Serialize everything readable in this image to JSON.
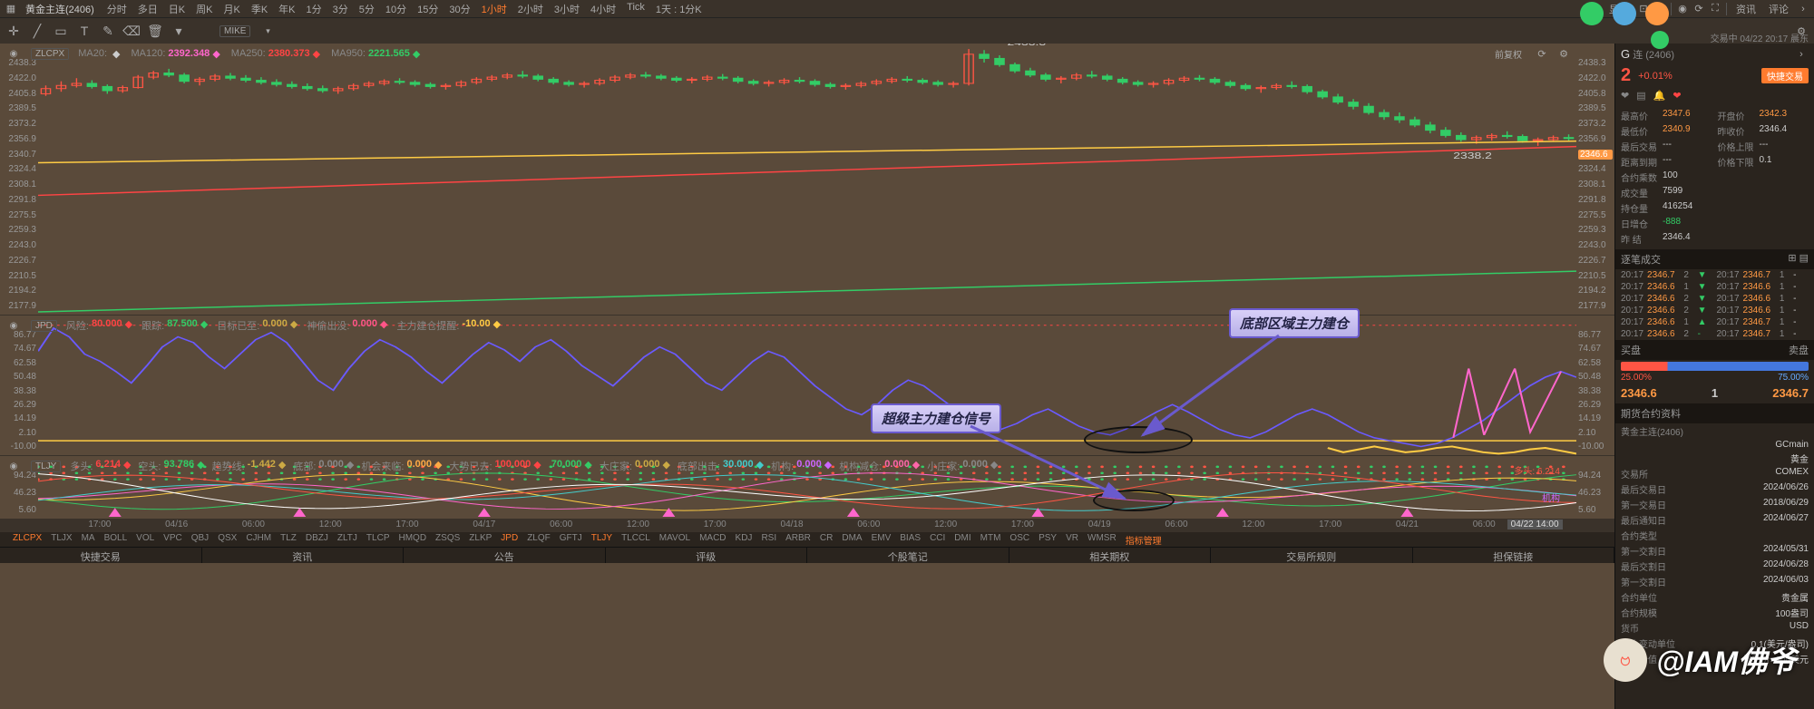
{
  "instrument": {
    "name": "黄金主连(2406)",
    "code_label": "(2406)"
  },
  "toolbar": {
    "timeframes": [
      "分时",
      "多日",
      "日K",
      "周K",
      "月K",
      "季K",
      "年K",
      "1分",
      "3分",
      "5分",
      "10分",
      "15分",
      "30分",
      "1小时",
      "2小时",
      "3小时",
      "4小时",
      "Tick",
      "1天 : 1分K"
    ],
    "active_tf": "1小时",
    "display_label": "显示",
    "right_tabs": [
      "资讯",
      "评论"
    ],
    "fq_label": "前复权"
  },
  "toolbar2": {
    "symbol1": "MIKE",
    "symbol2": "ZLCPX",
    "ma": [
      {
        "label": "MA20:",
        "val": "",
        "color": "#cccccc"
      },
      {
        "label": "MA120:",
        "val": "2392.348",
        "color": "#ff66cc"
      },
      {
        "label": "MA250:",
        "val": "2380.373",
        "color": "#ff4444"
      },
      {
        "label": "MA950:",
        "val": "2221.565",
        "color": "#33cc66"
      }
    ]
  },
  "price_pane": {
    "yticks": [
      "2438.3",
      "2422.0",
      "2405.8",
      "2389.5",
      "2373.2",
      "2356.9",
      "2340.7",
      "2324.4",
      "2308.1",
      "2291.8",
      "2275.5",
      "2259.3",
      "2243.0",
      "2226.7",
      "2210.5",
      "2194.2",
      "2177.9"
    ],
    "current_y_label": "2346.6",
    "hi_label": "2433.3",
    "lo_label": "2338.2",
    "candle_color_up": "#ff5544",
    "candle_color_dn": "#33cc66",
    "ma_lines": [
      {
        "color": "#ffcc44",
        "y0": 0.44,
        "y1": 0.36
      },
      {
        "color": "#ff4444",
        "y0": 0.56,
        "y1": 0.38
      },
      {
        "color": "#33cc66",
        "y0": 0.99,
        "y1": 0.84
      }
    ],
    "candles_ohlc": [
      [
        2390,
        2398,
        2388,
        2395
      ],
      [
        2395,
        2402,
        2392,
        2398
      ],
      [
        2398,
        2405,
        2396,
        2400
      ],
      [
        2400,
        2403,
        2395,
        2397
      ],
      [
        2397,
        2399,
        2390,
        2393
      ],
      [
        2393,
        2398,
        2391,
        2396
      ],
      [
        2396,
        2408,
        2395,
        2406
      ],
      [
        2406,
        2412,
        2404,
        2410
      ],
      [
        2410,
        2414,
        2406,
        2408
      ],
      [
        2408,
        2410,
        2400,
        2402
      ],
      [
        2402,
        2406,
        2398,
        2404
      ],
      [
        2404,
        2409,
        2402,
        2407
      ],
      [
        2407,
        2410,
        2403,
        2405
      ],
      [
        2405,
        2408,
        2401,
        2403
      ],
      [
        2403,
        2406,
        2399,
        2401
      ],
      [
        2401,
        2404,
        2397,
        2399
      ],
      [
        2399,
        2402,
        2395,
        2397
      ],
      [
        2397,
        2400,
        2393,
        2395
      ],
      [
        2395,
        2398,
        2391,
        2393
      ],
      [
        2393,
        2397,
        2390,
        2395
      ],
      [
        2395,
        2400,
        2393,
        2398
      ],
      [
        2398,
        2402,
        2396,
        2400
      ],
      [
        2400,
        2404,
        2398,
        2402
      ],
      [
        2402,
        2405,
        2399,
        2401
      ],
      [
        2401,
        2403,
        2397,
        2399
      ],
      [
        2399,
        2401,
        2395,
        2397
      ],
      [
        2397,
        2400,
        2394,
        2398
      ],
      [
        2398,
        2403,
        2396,
        2401
      ],
      [
        2401,
        2406,
        2399,
        2404
      ],
      [
        2404,
        2408,
        2402,
        2406
      ],
      [
        2406,
        2410,
        2404,
        2408
      ],
      [
        2408,
        2412,
        2405,
        2407
      ],
      [
        2407,
        2409,
        2402,
        2404
      ],
      [
        2404,
        2406,
        2399,
        2401
      ],
      [
        2401,
        2403,
        2397,
        2399
      ],
      [
        2399,
        2402,
        2396,
        2400
      ],
      [
        2400,
        2405,
        2398,
        2403
      ],
      [
        2403,
        2408,
        2401,
        2406
      ],
      [
        2406,
        2410,
        2404,
        2408
      ],
      [
        2408,
        2411,
        2405,
        2407
      ],
      [
        2407,
        2409,
        2403,
        2405
      ],
      [
        2405,
        2407,
        2401,
        2403
      ],
      [
        2403,
        2406,
        2400,
        2404
      ],
      [
        2404,
        2408,
        2402,
        2406
      ],
      [
        2406,
        2409,
        2403,
        2405
      ],
      [
        2405,
        2407,
        2400,
        2402
      ],
      [
        2402,
        2404,
        2398,
        2400
      ],
      [
        2400,
        2403,
        2397,
        2401
      ],
      [
        2401,
        2405,
        2399,
        2403
      ],
      [
        2403,
        2406,
        2400,
        2402
      ],
      [
        2402,
        2404,
        2397,
        2399
      ],
      [
        2399,
        2401,
        2395,
        2397
      ],
      [
        2397,
        2400,
        2394,
        2398
      ],
      [
        2398,
        2402,
        2396,
        2400
      ],
      [
        2400,
        2404,
        2398,
        2402
      ],
      [
        2402,
        2406,
        2400,
        2404
      ],
      [
        2404,
        2407,
        2401,
        2403
      ],
      [
        2403,
        2405,
        2399,
        2401
      ],
      [
        2401,
        2403,
        2397,
        2399
      ],
      [
        2399,
        2402,
        2396,
        2400
      ],
      [
        2400,
        2433,
        2398,
        2428
      ],
      [
        2428,
        2432,
        2420,
        2424
      ],
      [
        2424,
        2427,
        2416,
        2418
      ],
      [
        2418,
        2420,
        2410,
        2412
      ],
      [
        2412,
        2415,
        2406,
        2408
      ],
      [
        2408,
        2410,
        2402,
        2404
      ],
      [
        2404,
        2407,
        2400,
        2405
      ],
      [
        2405,
        2410,
        2403,
        2408
      ],
      [
        2408,
        2412,
        2405,
        2407
      ],
      [
        2407,
        2409,
        2402,
        2404
      ],
      [
        2404,
        2406,
        2399,
        2401
      ],
      [
        2401,
        2403,
        2397,
        2399
      ],
      [
        2399,
        2402,
        2396,
        2400
      ],
      [
        2400,
        2405,
        2398,
        2403
      ],
      [
        2403,
        2407,
        2401,
        2405
      ],
      [
        2405,
        2408,
        2402,
        2404
      ],
      [
        2404,
        2406,
        2399,
        2401
      ],
      [
        2401,
        2403,
        2396,
        2398
      ],
      [
        2398,
        2400,
        2393,
        2395
      ],
      [
        2395,
        2398,
        2391,
        2396
      ],
      [
        2396,
        2400,
        2394,
        2398
      ],
      [
        2398,
        2402,
        2395,
        2397
      ],
      [
        2397,
        2399,
        2390,
        2392
      ],
      [
        2392,
        2394,
        2385,
        2387
      ],
      [
        2387,
        2390,
        2380,
        2382
      ],
      [
        2382,
        2385,
        2375,
        2378
      ],
      [
        2378,
        2381,
        2370,
        2372
      ],
      [
        2372,
        2375,
        2365,
        2368
      ],
      [
        2368,
        2372,
        2362,
        2365
      ],
      [
        2365,
        2368,
        2358,
        2360
      ],
      [
        2360,
        2363,
        2352,
        2355
      ],
      [
        2355,
        2358,
        2348,
        2350
      ],
      [
        2350,
        2353,
        2344,
        2346
      ],
      [
        2346,
        2350,
        2342,
        2348
      ],
      [
        2348,
        2352,
        2345,
        2350
      ],
      [
        2350,
        2354,
        2347,
        2349
      ],
      [
        2349,
        2351,
        2343,
        2345
      ],
      [
        2345,
        2348,
        2340,
        2346
      ],
      [
        2346,
        2350,
        2344,
        2348
      ],
      [
        2348,
        2351,
        2345,
        2347
      ]
    ],
    "y_domain": [
      2177.9,
      2438.3
    ]
  },
  "time_axis": {
    "ticks": [
      {
        "pos": 4,
        "label": "17:00"
      },
      {
        "pos": 9,
        "label": "04/16"
      },
      {
        "pos": 14,
        "label": "06:00"
      },
      {
        "pos": 19,
        "label": "12:00"
      },
      {
        "pos": 24,
        "label": "17:00"
      },
      {
        "pos": 29,
        "label": "04/17"
      },
      {
        "pos": 34,
        "label": "06:00"
      },
      {
        "pos": 39,
        "label": "12:00"
      },
      {
        "pos": 44,
        "label": "17:00"
      },
      {
        "pos": 49,
        "label": "04/18"
      },
      {
        "pos": 54,
        "label": "06:00"
      },
      {
        "pos": 59,
        "label": "12:00"
      },
      {
        "pos": 64,
        "label": "17:00"
      },
      {
        "pos": 69,
        "label": "04/19"
      },
      {
        "pos": 74,
        "label": "06:00"
      },
      {
        "pos": 79,
        "label": "12:00"
      },
      {
        "pos": 84,
        "label": "17:00"
      },
      {
        "pos": 89,
        "label": "04/21"
      },
      {
        "pos": 94,
        "label": "06:00"
      }
    ],
    "cursor": "04/22 14:00"
  },
  "ind1": {
    "sym": "JPD",
    "items": [
      {
        "label": "风险:",
        "val": "80.000",
        "color": "#ff4444"
      },
      {
        "label": "跟踪:",
        "val": "87.500",
        "color": "#33cc66"
      },
      {
        "label": "目标已至:",
        "val": "0.000",
        "color": "#ccaa44"
      },
      {
        "label": "神偷出没:",
        "val": "0.000",
        "color": "#ff5588"
      },
      {
        "label": "主力建仓提醒:",
        "val": "-10.00",
        "color": "#ffcc44"
      }
    ],
    "yticks": [
      "86.77",
      "74.67",
      "62.58",
      "50.48",
      "38.38",
      "26.29",
      "14.19",
      "2.10",
      "-10.00"
    ],
    "line": {
      "color": "#6a5aff",
      "points": [
        62,
        78,
        72,
        60,
        55,
        48,
        40,
        52,
        65,
        72,
        68,
        58,
        50,
        60,
        70,
        75,
        68,
        55,
        42,
        35,
        50,
        62,
        70,
        65,
        58,
        48,
        40,
        50,
        60,
        68,
        63,
        55,
        65,
        70,
        62,
        52,
        45,
        38,
        48,
        58,
        65,
        60,
        50,
        40,
        35,
        45,
        55,
        62,
        58,
        48,
        38,
        30,
        22,
        18,
        25,
        35,
        42,
        38,
        30,
        22,
        15,
        10,
        8,
        12,
        18,
        22,
        16,
        10,
        6,
        4,
        8,
        14,
        20,
        25,
        20,
        14,
        8,
        4,
        2,
        6,
        12,
        18,
        22,
        18,
        12,
        6,
        2,
        0,
        -2,
        -4,
        -2,
        2,
        8,
        14,
        22,
        30,
        38,
        44,
        48,
        44
      ]
    },
    "baseline": {
      "color": "#ffcc44",
      "y": 0
    },
    "neg_line": {
      "color": "#ffcc44",
      "points_last": [
        -5,
        -8,
        -6,
        -4,
        -6,
        -8,
        -7,
        -5,
        -4,
        -6,
        -8,
        -9,
        -8,
        -6,
        -5,
        -7,
        -9
      ]
    }
  },
  "ind2": {
    "sym": "TLJY",
    "items": [
      {
        "label": "多头:",
        "val": "6.214",
        "color": "#ff4444"
      },
      {
        "label": "空头:",
        "val": "93.786",
        "color": "#33cc66"
      },
      {
        "label": "趋势线:",
        "val": "-1.442",
        "color": "#ccaa44"
      },
      {
        "label": "底部:",
        "val": "0.000",
        "color": "#888888"
      },
      {
        "label": "机会来临:",
        "val": "0.000",
        "color": "#ffaa44"
      },
      {
        "label": "大势已去:",
        "val": "100.000",
        "color": "#ff4444"
      },
      {
        "label": "",
        "val": "70.000",
        "color": "#33cc66"
      },
      {
        "label": "大庄家:",
        "val": "0.000",
        "color": "#ccaa44"
      },
      {
        "label": "底部出击:",
        "val": "30.000",
        "color": "#44cccc"
      },
      {
        "label": "机构:",
        "val": "0.000",
        "color": "#cc66ff"
      },
      {
        "label": "机构减仓:",
        "val": "0.000",
        "color": "#ff66aa"
      },
      {
        "label": "小庄家:",
        "val": "0.000",
        "color": "#888888"
      }
    ],
    "yticks": [
      "94.24",
      "46.23",
      "5.60"
    ],
    "callout1": "多头: 6.214",
    "callout2": "机构"
  },
  "indicator_tabs": [
    "ZLCPX",
    "TLJX",
    "MA",
    "BOLL",
    "VOL",
    "VPC",
    "QBJ",
    "QSX",
    "CJHM",
    "TLZ",
    "DBZJ",
    "ZLTJ",
    "TLCP",
    "HMQD",
    "ZSQS",
    "ZLKP",
    "JPD",
    "ZLQF",
    "GFTJ",
    "TLJY",
    "TLCCL",
    "MAVOL",
    "MACD",
    "KDJ",
    "RSI",
    "ARBR",
    "CR",
    "DMA",
    "EMV",
    "BIAS",
    "CCI",
    "DMI",
    "MTM",
    "OSC",
    "PSY",
    "VR",
    "WMSR",
    "指标管理"
  ],
  "indicator_tabs_orange": [
    "ZLCPX",
    "JPD",
    "TLJY",
    "指标管理"
  ],
  "bottom_tabs": [
    "快捷交易",
    "资讯",
    "公告",
    "评级",
    "个股笔记",
    "相关期权",
    "交易所规则",
    "担保链接"
  ],
  "side": {
    "title_prefix": "G",
    "code_suffix": "连 (2406)",
    "big2": "2",
    "pct": "+0.01%",
    "time_info": "交易中 04/22 20:17 晨东",
    "fast_trade": "快捷交易",
    "quotes": [
      {
        "l1": "最高价",
        "v1": "2347.6",
        "c1": "val-orange",
        "l2": "开盘价",
        "v2": "2342.3",
        "c2": "val-orange"
      },
      {
        "l1": "最低价",
        "v1": "2340.9",
        "c1": "val-orange",
        "l2": "昨收价",
        "v2": "2346.4",
        "c2": ""
      },
      {
        "l1": "最后交易",
        "v1": "---",
        "c1": "",
        "l2": "价格上限",
        "v2": "---",
        "c2": ""
      },
      {
        "l1": "距离到期",
        "v1": "---",
        "c1": "",
        "l2": "价格下限",
        "v2": "0.1",
        "c2": ""
      },
      {
        "l1": "合约乘数",
        "v1": "100",
        "c1": "",
        "l2": "",
        "v2": "",
        "c2": ""
      },
      {
        "l1": "成交量",
        "v1": "7599",
        "c1": "",
        "l2": "",
        "v2": "",
        "c2": ""
      },
      {
        "l1": "持仓量",
        "v1": "416254",
        "c1": "",
        "l2": "",
        "v2": "",
        "c2": ""
      },
      {
        "l1": "日增仓",
        "v1": "-888",
        "c1": "val-dn",
        "l2": "",
        "v2": "",
        "c2": ""
      },
      {
        "l1": "昨 结",
        "v1": "2346.4",
        "c1": "",
        "l2": "",
        "v2": "",
        "c2": ""
      }
    ],
    "tick_title": "逐笔成交",
    "ticks": [
      {
        "t": "20:17",
        "p": "2346.7",
        "q": "2",
        "d": "▼",
        "t2": "20:17",
        "p2": "2346.7",
        "q2": "1",
        "d2": "-"
      },
      {
        "t": "20:17",
        "p": "2346.6",
        "q": "1",
        "d": "▼",
        "t2": "20:17",
        "p2": "2346.6",
        "q2": "1",
        "d2": "-"
      },
      {
        "t": "20:17",
        "p": "2346.6",
        "q": "2",
        "d": "▼",
        "t2": "20:17",
        "p2": "2346.6",
        "q2": "1",
        "d2": "-"
      },
      {
        "t": "20:17",
        "p": "2346.6",
        "q": "2",
        "d": "▼",
        "t2": "20:17",
        "p2": "2346.6",
        "q2": "1",
        "d2": "-"
      },
      {
        "t": "20:17",
        "p": "2346.6",
        "q": "1",
        "d": "▲",
        "t2": "20:17",
        "p2": "2346.7",
        "q2": "1",
        "d2": "-"
      },
      {
        "t": "20:17",
        "p": "2346.6",
        "q": "2",
        "d": "-",
        "t2": "20:17",
        "p2": "2346.7",
        "q2": "1",
        "d2": "-"
      }
    ],
    "depth": {
      "buy_label": "买盘",
      "sell_label": "卖盘",
      "buy_pct": "25.00%",
      "sell_pct": "75.00%"
    },
    "bid": "2346.6",
    "bid_qty": "1",
    "ask": "2346.7",
    "contract_title": "期货合约资料",
    "contract": [
      {
        "l": "黄金主连(2406)",
        "v": ""
      },
      {
        "l": "",
        "v": "GCmain"
      },
      {
        "l": "",
        "v": "黄金"
      },
      {
        "l": "交易所",
        "v": "COMEX"
      },
      {
        "l": "最后交易日",
        "v": "2024/06/26"
      },
      {
        "l": "第一交易日",
        "v": "2018/06/29"
      },
      {
        "l": "最后通知日",
        "v": "2024/06/27"
      },
      {
        "l": "合约类型",
        "v": ""
      },
      {
        "l": "第一交割日",
        "v": "2024/05/31"
      },
      {
        "l": "最后交割日",
        "v": "2024/06/28"
      },
      {
        "l": "第一交割日",
        "v": "2024/06/03"
      },
      {
        "l": "合约单位",
        "v": "贵金属"
      },
      {
        "l": "合约规模",
        "v": "100盎司"
      },
      {
        "l": "货币",
        "v": "USD"
      },
      {
        "l": "最小变动单位",
        "v": "0.1(美元/盎司)"
      },
      {
        "l": "合约价值",
        "v": "最新价×100美元"
      }
    ]
  },
  "annotations": {
    "box1": "超级主力建仓信号",
    "box2": "底部区域主力建仓",
    "watermark": "@IAM佛爷"
  },
  "colors": {
    "bg": "#5a4a3a",
    "panel": "#3a322a",
    "dark": "#2a241e",
    "orange": "#ff7b2e",
    "red": "#ff5544",
    "green": "#33cc66"
  }
}
